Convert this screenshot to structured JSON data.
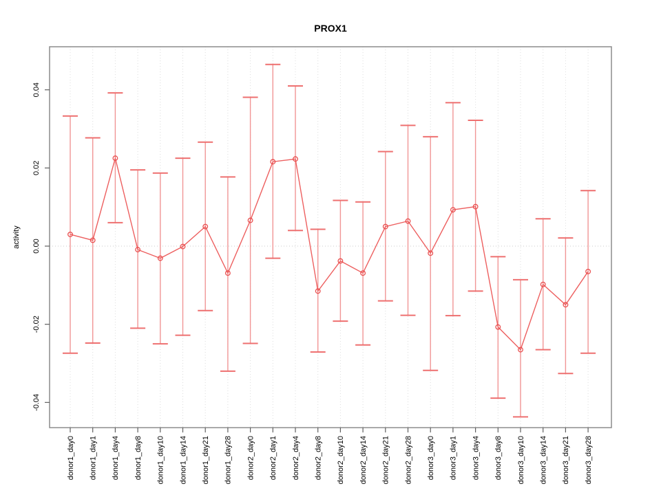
{
  "title": "PROX1",
  "y_axis": {
    "label": "activity",
    "tick_labels": [
      "0.04",
      "0.02",
      "0.00",
      "-0.02",
      "-0.04"
    ],
    "tick_values": [
      0.04,
      0.02,
      0.0,
      -0.02,
      -0.04
    ]
  },
  "colors": {
    "error_bar_line": "#f19595",
    "error_bar_cap": "#ee6f6f",
    "series_line": "#ed5f5f",
    "marker_stroke": "#e95050",
    "grid_line": "#dcdcdc",
    "zero_line": "#c9c9c9",
    "axis_box": "#8c8c8c",
    "tick_stroke": "#5f5f5f",
    "text": "#000000"
  },
  "chart_data": {
    "type": "line",
    "subtype": "error-bar-series",
    "title": "PROX1",
    "xlabel": "",
    "ylabel": "activity",
    "ylim": [
      -0.0464,
      0.051
    ],
    "grid": "vertical dotted gridline per category; dotted horizontal line at y=0",
    "legend_position": "none",
    "marker": "open-circle",
    "categories": [
      "donor1_day0",
      "donor1_day1",
      "donor1_day4",
      "donor1_day8",
      "donor1_day10",
      "donor1_day14",
      "donor1_day21",
      "donor1_day28",
      "donor2_day0",
      "donor2_day1",
      "donor2_day4",
      "donor2_day8",
      "donor2_day10",
      "donor2_day14",
      "donor2_day21",
      "donor2_day28",
      "donor3_day0",
      "donor3_day1",
      "donor3_day4",
      "donor3_day8",
      "donor3_day10",
      "donor3_day14",
      "donor3_day21",
      "donor3_day28"
    ],
    "series": [
      {
        "name": "activity",
        "values": [
          0.003,
          0.0015,
          0.0225,
          -0.0009,
          -0.0031,
          -0.0001,
          0.005,
          -0.0069,
          0.0066,
          0.0216,
          0.0223,
          -0.0115,
          -0.0038,
          -0.0069,
          0.005,
          0.0064,
          -0.0018,
          0.0093,
          0.0101,
          -0.0207,
          -0.0265,
          -0.0098,
          -0.015,
          -0.0065
        ],
        "upper": [
          0.0333,
          0.0277,
          0.0392,
          0.0195,
          0.0187,
          0.0225,
          0.0266,
          0.0177,
          0.0381,
          0.0465,
          0.041,
          0.0043,
          0.0117,
          0.0113,
          0.0242,
          0.0309,
          0.028,
          0.0367,
          0.0322,
          -0.0027,
          -0.0086,
          0.007,
          0.0021,
          0.0142
        ],
        "lower": [
          -0.0274,
          -0.0248,
          0.006,
          -0.021,
          -0.025,
          -0.0228,
          -0.0165,
          -0.032,
          -0.0249,
          -0.0031,
          0.004,
          -0.0271,
          -0.0192,
          -0.0253,
          -0.014,
          -0.0177,
          -0.0318,
          -0.0178,
          -0.0115,
          -0.0389,
          -0.0437,
          -0.0265,
          -0.0326,
          -0.0274
        ]
      }
    ]
  }
}
